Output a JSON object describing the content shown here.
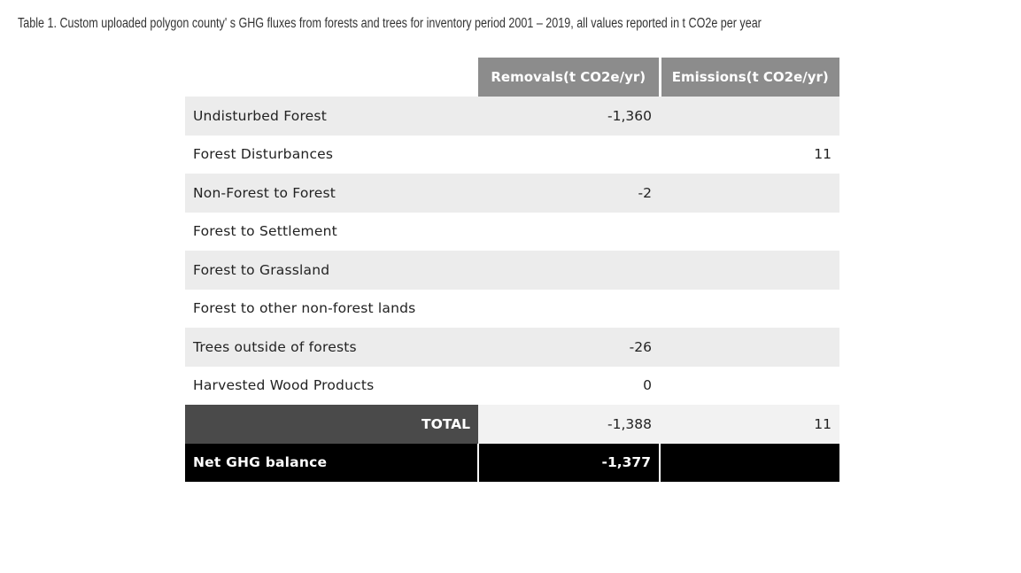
{
  "caption": "Table 1. Custom uploaded polygon county' s GHG fluxes from forests and trees for inventory period 2001 – 2019, all values reported in t CO2e per year",
  "table": {
    "headers": {
      "category": "",
      "removals": "Removals(t CO2e/yr)",
      "emissions": "Emissions(t CO2e/yr)"
    },
    "rows": [
      {
        "category": "Undisturbed Forest",
        "removals": "-1,360",
        "emissions": ""
      },
      {
        "category": "Forest Disturbances",
        "removals": "",
        "emissions": "11"
      },
      {
        "category": "Non-Forest to Forest",
        "removals": "-2",
        "emissions": ""
      },
      {
        "category": "Forest to Settlement",
        "removals": "",
        "emissions": ""
      },
      {
        "category": "Forest to Grassland",
        "removals": "",
        "emissions": ""
      },
      {
        "category": "Forest to other non-forest lands",
        "removals": "",
        "emissions": ""
      },
      {
        "category": "Trees outside of forests",
        "removals": "-26",
        "emissions": ""
      },
      {
        "category": "Harvested Wood Products",
        "removals": "0",
        "emissions": ""
      }
    ],
    "total": {
      "label": "TOTAL",
      "removals": "-1,388",
      "emissions": "11"
    },
    "net": {
      "label": "Net GHG balance",
      "value": "-1,377",
      "emissions": ""
    }
  },
  "colors": {
    "header_bg": "#8c8c8c",
    "row_alt": "#ececec",
    "total_label_bg": "#4a4a4a",
    "net_bg": "#000000"
  }
}
